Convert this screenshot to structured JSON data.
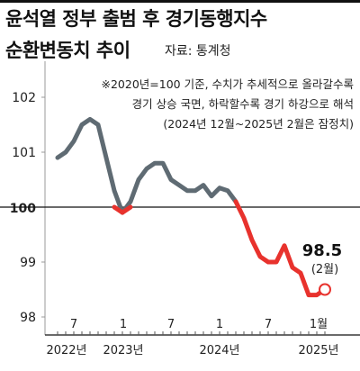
{
  "title_line1": "윤석열 정부 출범 후 경기동행지수",
  "title_line2": "순환변동치 추이",
  "source": "자료: 통계청",
  "notes": [
    "※2020년=100 기준, 수치가 추세적으로 올라갈수록",
    "경기 상승 국면, 하락할수록 경기 하강으로 해석",
    "(2024년 12월~2025년 2월은 잠정치)"
  ],
  "callout": {
    "value": "98.5",
    "label": "(2월)"
  },
  "colors": {
    "gray_line": "#5f6b73",
    "red_line": "#e8322d",
    "baseline": "#111111"
  },
  "chart_data": {
    "type": "line",
    "title": "윤석열 정부 출범 후 경기동행지수 순환변동치 추이",
    "ylim": [
      98,
      102
    ],
    "y_ticks": [
      "98",
      "99",
      "100",
      "101",
      "102"
    ],
    "baseline": 100,
    "x_tick_labels": [
      "7",
      "1",
      "7",
      "1",
      "7",
      "1월"
    ],
    "year_labels": [
      "2022년",
      "2023년",
      "2024년",
      "2025년"
    ],
    "months": [
      "2022-05",
      "2022-06",
      "2022-07",
      "2022-08",
      "2022-09",
      "2022-10",
      "2022-11",
      "2022-12",
      "2023-01",
      "2023-02",
      "2023-03",
      "2023-04",
      "2023-05",
      "2023-06",
      "2023-07",
      "2023-08",
      "2023-09",
      "2023-10",
      "2023-11",
      "2023-12",
      "2024-01",
      "2024-02",
      "2024-03",
      "2024-04",
      "2024-05",
      "2024-06",
      "2024-07",
      "2024-08",
      "2024-09",
      "2024-10",
      "2024-11",
      "2024-12",
      "2025-01",
      "2025-02"
    ],
    "values": [
      100.9,
      101.0,
      101.2,
      101.5,
      101.6,
      101.5,
      100.9,
      100.3,
      99.9,
      100.1,
      100.5,
      100.7,
      100.8,
      100.8,
      100.5,
      100.4,
      100.3,
      100.3,
      100.4,
      100.2,
      100.35,
      100.3,
      100.1,
      99.8,
      99.4,
      99.1,
      99.0,
      99.0,
      99.3,
      98.9,
      98.8,
      98.4,
      98.4,
      98.5
    ],
    "segments": [
      {
        "name": "rise-fall",
        "color": "gray",
        "from": "2022-05",
        "to": "2023-01"
      },
      {
        "name": "rise-fall",
        "color": "gray",
        "from": "2023-01",
        "to": "2024-03"
      },
      {
        "name": "below-100",
        "color": "red",
        "from": "2024-03",
        "to": "2025-02"
      }
    ]
  }
}
